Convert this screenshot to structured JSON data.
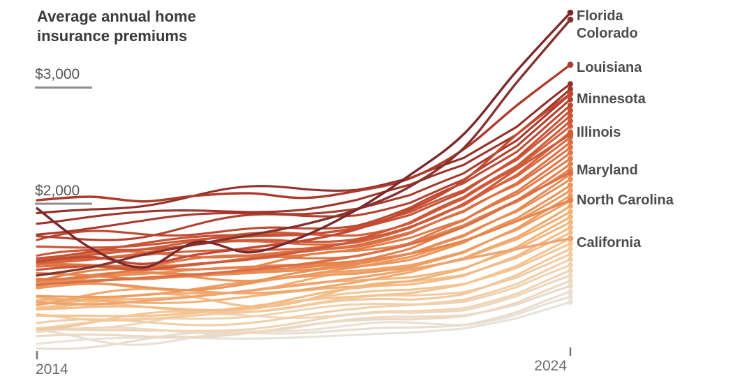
{
  "page": {
    "title_line1": "Average annual home",
    "title_line2": "insurance premiums"
  },
  "chart_data": {
    "type": "line",
    "title": "Average annual home insurance premiums",
    "x": [
      2014,
      2015,
      2016,
      2017,
      2018,
      2019,
      2020,
      2021,
      2022,
      2023,
      2024
    ],
    "x_axis": {
      "left_label": "2014",
      "right_label": "2024"
    },
    "y_axis": {
      "unit": "dollars per year",
      "ticks": [
        {
          "label": "$3,000",
          "value": 3000
        },
        {
          "label": "$2,000",
          "value": 2000
        }
      ]
    },
    "legend_position": "right-edge-direct-labels",
    "grid": "off",
    "series": [
      {
        "name": "Florida",
        "color": "#7A282B",
        "values": [
          1960,
          1620,
          1450,
          1670,
          1580,
          1720,
          1950,
          2250,
          2600,
          3150,
          3650
        ]
      },
      {
        "name": "Colorado",
        "color": "#84322D",
        "values": [
          1380,
          1450,
          1560,
          1650,
          1730,
          1820,
          1950,
          2150,
          2480,
          3050,
          3590
        ]
      },
      {
        "name": "Louisiana",
        "color": "#AE3A2C",
        "values": [
          2030,
          2060,
          2020,
          2070,
          2090,
          2050,
          2110,
          2220,
          2470,
          2850,
          3200
        ]
      },
      {
        "name": "Minnesota",
        "color": "#C14A31",
        "values": [
          1500,
          1540,
          1480,
          1560,
          1620,
          1680,
          1780,
          1950,
          2200,
          2600,
          2950
        ]
      },
      {
        "name": "Illinois",
        "color": "#CE5A39",
        "values": [
          1430,
          1460,
          1430,
          1480,
          1520,
          1590,
          1680,
          1800,
          2000,
          2300,
          2600
        ]
      },
      {
        "name": "Maryland",
        "color": "#DB6F45",
        "values": [
          1300,
          1330,
          1360,
          1390,
          1430,
          1480,
          1550,
          1650,
          1800,
          2030,
          2270
        ]
      },
      {
        "name": "North Carolina",
        "color": "#E5864F",
        "values": [
          1400,
          1380,
          1350,
          1390,
          1420,
          1450,
          1500,
          1570,
          1680,
          1850,
          2030
        ]
      },
      {
        "name": "California",
        "color": "#EFA470",
        "values": [
          1150,
          1130,
          1160,
          1200,
          1250,
          1300,
          1360,
          1430,
          1520,
          1610,
          1700
        ]
      }
    ],
    "background_series_note": "unlabeled state lines, 2014 start value and 2024 end value in dollars",
    "background_series": [
      {
        "start": 790,
        "end": 1150,
        "color": "#E7E2DA"
      },
      {
        "start": 840,
        "end": 1195,
        "color": "#E8E0D5"
      },
      {
        "start": 800,
        "end": 1240,
        "color": "#E9DDCF"
      },
      {
        "start": 880,
        "end": 1290,
        "color": "#EBDAC9"
      },
      {
        "start": 845,
        "end": 1335,
        "color": "#ECD8C3"
      },
      {
        "start": 930,
        "end": 1380,
        "color": "#EDD8BE"
      },
      {
        "start": 890,
        "end": 1425,
        "color": "#EED5B8"
      },
      {
        "start": 975,
        "end": 1470,
        "color": "#EFD2B1"
      },
      {
        "start": 940,
        "end": 1520,
        "color": "#F0CFAA"
      },
      {
        "start": 1020,
        "end": 1565,
        "color": "#F1CCA3"
      },
      {
        "start": 985,
        "end": 1610,
        "color": "#F2C89C"
      },
      {
        "start": 1070,
        "end": 1655,
        "color": "#F3C697"
      },
      {
        "start": 1030,
        "end": 1700,
        "color": "#F4C392"
      },
      {
        "start": 1115,
        "end": 1750,
        "color": "#F3BF8B"
      },
      {
        "start": 1075,
        "end": 1795,
        "color": "#F3BB85"
      },
      {
        "start": 1160,
        "end": 1840,
        "color": "#F2B77F"
      },
      {
        "start": 1120,
        "end": 1885,
        "color": "#F2B378"
      },
      {
        "start": 1205,
        "end": 1930,
        "color": "#F1AF72"
      },
      {
        "start": 1165,
        "end": 1980,
        "color": "#F0A76C"
      },
      {
        "start": 1250,
        "end": 2025,
        "color": "#EFA267"
      },
      {
        "start": 1210,
        "end": 2070,
        "color": "#EE9D62"
      },
      {
        "start": 1295,
        "end": 2115,
        "color": "#ED985D"
      },
      {
        "start": 1255,
        "end": 2160,
        "color": "#EB9359"
      },
      {
        "start": 1340,
        "end": 2210,
        "color": "#EA8F57"
      },
      {
        "start": 1300,
        "end": 2255,
        "color": "#E88B55"
      },
      {
        "start": 1385,
        "end": 2300,
        "color": "#E68650"
      },
      {
        "start": 1345,
        "end": 2345,
        "color": "#E4814C"
      },
      {
        "start": 1430,
        "end": 2390,
        "color": "#E27C49"
      },
      {
        "start": 1390,
        "end": 2440,
        "color": "#E07746"
      },
      {
        "start": 1470,
        "end": 2485,
        "color": "#DE7344"
      },
      {
        "start": 1435,
        "end": 2530,
        "color": "#DC6F42"
      },
      {
        "start": 1515,
        "end": 2575,
        "color": "#D96940"
      },
      {
        "start": 1480,
        "end": 2620,
        "color": "#D5633D"
      },
      {
        "start": 1560,
        "end": 2670,
        "color": "#D15E3B"
      },
      {
        "start": 1525,
        "end": 2715,
        "color": "#CD5838"
      },
      {
        "start": 1600,
        "end": 2760,
        "color": "#CA5536"
      },
      {
        "start": 1570,
        "end": 2805,
        "color": "#C75134"
      },
      {
        "start": 1645,
        "end": 2850,
        "color": "#BE4932"
      },
      {
        "start": 1700,
        "end": 2900,
        "color": "#B44130"
      },
      {
        "start": 1760,
        "end": 2945,
        "color": "#A93A2D"
      },
      {
        "start": 1830,
        "end": 2990,
        "color": "#9E342B"
      },
      {
        "start": 1950,
        "end": 3035,
        "color": "#93302A"
      }
    ],
    "growth_profile": [
      0,
      0.03,
      0.055,
      0.085,
      0.115,
      0.15,
      0.2,
      0.28,
      0.42,
      0.66,
      1
    ]
  }
}
